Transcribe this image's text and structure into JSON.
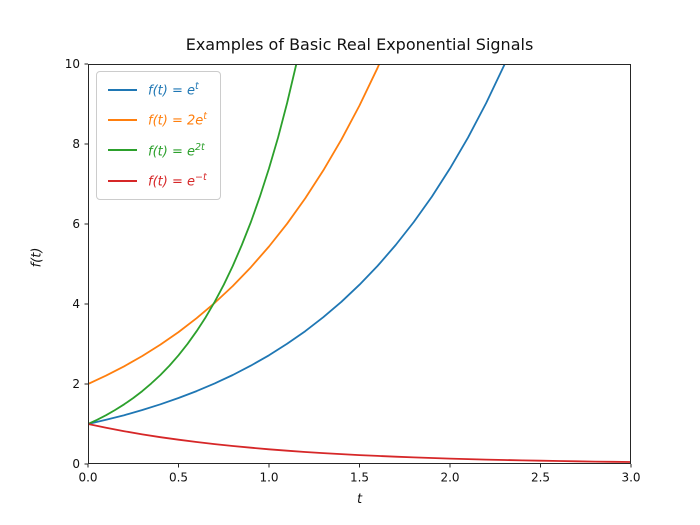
{
  "chart_data": {
    "type": "line",
    "title": "Examples of Basic Real Exponential Signals",
    "xlabel": "t",
    "ylabel": "f(t)",
    "xlim": [
      0.0,
      3.0
    ],
    "ylim": [
      0,
      10
    ],
    "grid": false,
    "frame_color": "#262626",
    "text_color": "#111111",
    "legend_position": "upper-left",
    "xticks": [
      {
        "value": 0.0,
        "label": "0.0"
      },
      {
        "value": 0.5,
        "label": "0.5"
      },
      {
        "value": 1.0,
        "label": "1.0"
      },
      {
        "value": 1.5,
        "label": "1.5"
      },
      {
        "value": 2.0,
        "label": "2.0"
      },
      {
        "value": 2.5,
        "label": "2.5"
      },
      {
        "value": 3.0,
        "label": "3.0"
      }
    ],
    "yticks": [
      {
        "value": 0,
        "label": "0"
      },
      {
        "value": 2,
        "label": "2"
      },
      {
        "value": 4,
        "label": "4"
      },
      {
        "value": 6,
        "label": "6"
      },
      {
        "value": 8,
        "label": "8"
      },
      {
        "value": 10,
        "label": "10"
      }
    ],
    "series": [
      {
        "id": "exp-t",
        "name": "f(t) = e^t",
        "label_base": "f(t) = e",
        "label_exp": "t",
        "color": "#1f77b4",
        "points": [
          [
            0,
            1
          ],
          [
            0.1,
            1.105
          ],
          [
            0.2,
            1.221
          ],
          [
            0.3,
            1.35
          ],
          [
            0.4,
            1.492
          ],
          [
            0.5,
            1.649
          ],
          [
            0.6,
            1.822
          ],
          [
            0.7,
            2.014
          ],
          [
            0.8,
            2.226
          ],
          [
            0.9,
            2.46
          ],
          [
            1,
            2.718
          ],
          [
            1.1,
            3.004
          ],
          [
            1.2,
            3.32
          ],
          [
            1.3,
            3.669
          ],
          [
            1.4,
            4.055
          ],
          [
            1.5,
            4.482
          ],
          [
            1.6,
            4.953
          ],
          [
            1.7,
            5.474
          ],
          [
            1.8,
            6.05
          ],
          [
            1.9,
            6.686
          ],
          [
            2,
            7.389
          ],
          [
            2.1,
            8.166
          ],
          [
            2.2,
            9.025
          ],
          [
            2.3,
            9.974
          ],
          [
            2.4,
            11.023
          ]
        ]
      },
      {
        "id": "2exp-t",
        "name": "f(t) = 2e^t",
        "label_base": "f(t) = 2e",
        "label_exp": "t",
        "color": "#ff7f0e",
        "points": [
          [
            0,
            2
          ],
          [
            0.1,
            2.21
          ],
          [
            0.2,
            2.443
          ],
          [
            0.3,
            2.7
          ],
          [
            0.4,
            2.984
          ],
          [
            0.5,
            3.297
          ],
          [
            0.6,
            3.644
          ],
          [
            0.7,
            4.028
          ],
          [
            0.8,
            4.451
          ],
          [
            0.9,
            4.919
          ],
          [
            1,
            5.437
          ],
          [
            1.1,
            6.008
          ],
          [
            1.2,
            6.64
          ],
          [
            1.3,
            7.339
          ],
          [
            1.4,
            8.111
          ],
          [
            1.5,
            8.963
          ],
          [
            1.6,
            9.906
          ],
          [
            1.7,
            10.948
          ]
        ]
      },
      {
        "id": "exp-2t",
        "name": "f(t) = e^2t",
        "label_base": "f(t) = e",
        "label_exp": "2t",
        "color": "#2ca02c",
        "points": [
          [
            0,
            1
          ],
          [
            0.05,
            1.105
          ],
          [
            0.1,
            1.221
          ],
          [
            0.15,
            1.35
          ],
          [
            0.2,
            1.492
          ],
          [
            0.25,
            1.649
          ],
          [
            0.3,
            1.822
          ],
          [
            0.35,
            2.014
          ],
          [
            0.4,
            2.226
          ],
          [
            0.45,
            2.46
          ],
          [
            0.5,
            2.718
          ],
          [
            0.55,
            3.004
          ],
          [
            0.6,
            3.32
          ],
          [
            0.65,
            3.669
          ],
          [
            0.7,
            4.055
          ],
          [
            0.75,
            4.482
          ],
          [
            0.8,
            4.953
          ],
          [
            0.85,
            5.474
          ],
          [
            0.9,
            6.05
          ],
          [
            0.95,
            6.686
          ],
          [
            1,
            7.389
          ],
          [
            1.05,
            8.166
          ],
          [
            1.1,
            9.025
          ],
          [
            1.15,
            9.974
          ],
          [
            1.2,
            11.023
          ]
        ]
      },
      {
        "id": "exp-neg-t",
        "name": "f(t) = e^-t",
        "label_base": "f(t) = e",
        "label_exp": "−t",
        "color": "#d62728",
        "points": [
          [
            0,
            1
          ],
          [
            0.1,
            0.905
          ],
          [
            0.2,
            0.819
          ],
          [
            0.3,
            0.741
          ],
          [
            0.4,
            0.67
          ],
          [
            0.5,
            0.607
          ],
          [
            0.6,
            0.549
          ],
          [
            0.7,
            0.497
          ],
          [
            0.8,
            0.449
          ],
          [
            0.9,
            0.407
          ],
          [
            1,
            0.368
          ],
          [
            1.1,
            0.333
          ],
          [
            1.2,
            0.301
          ],
          [
            1.3,
            0.273
          ],
          [
            1.4,
            0.247
          ],
          [
            1.5,
            0.223
          ],
          [
            1.6,
            0.202
          ],
          [
            1.7,
            0.183
          ],
          [
            1.8,
            0.165
          ],
          [
            1.9,
            0.15
          ],
          [
            2,
            0.135
          ],
          [
            2.1,
            0.122
          ],
          [
            2.2,
            0.111
          ],
          [
            2.3,
            0.1
          ],
          [
            2.4,
            0.091
          ],
          [
            2.5,
            0.082
          ],
          [
            2.6,
            0.074
          ],
          [
            2.7,
            0.067
          ],
          [
            2.8,
            0.061
          ],
          [
            2.9,
            0.055
          ],
          [
            3,
            0.05
          ]
        ]
      }
    ]
  }
}
